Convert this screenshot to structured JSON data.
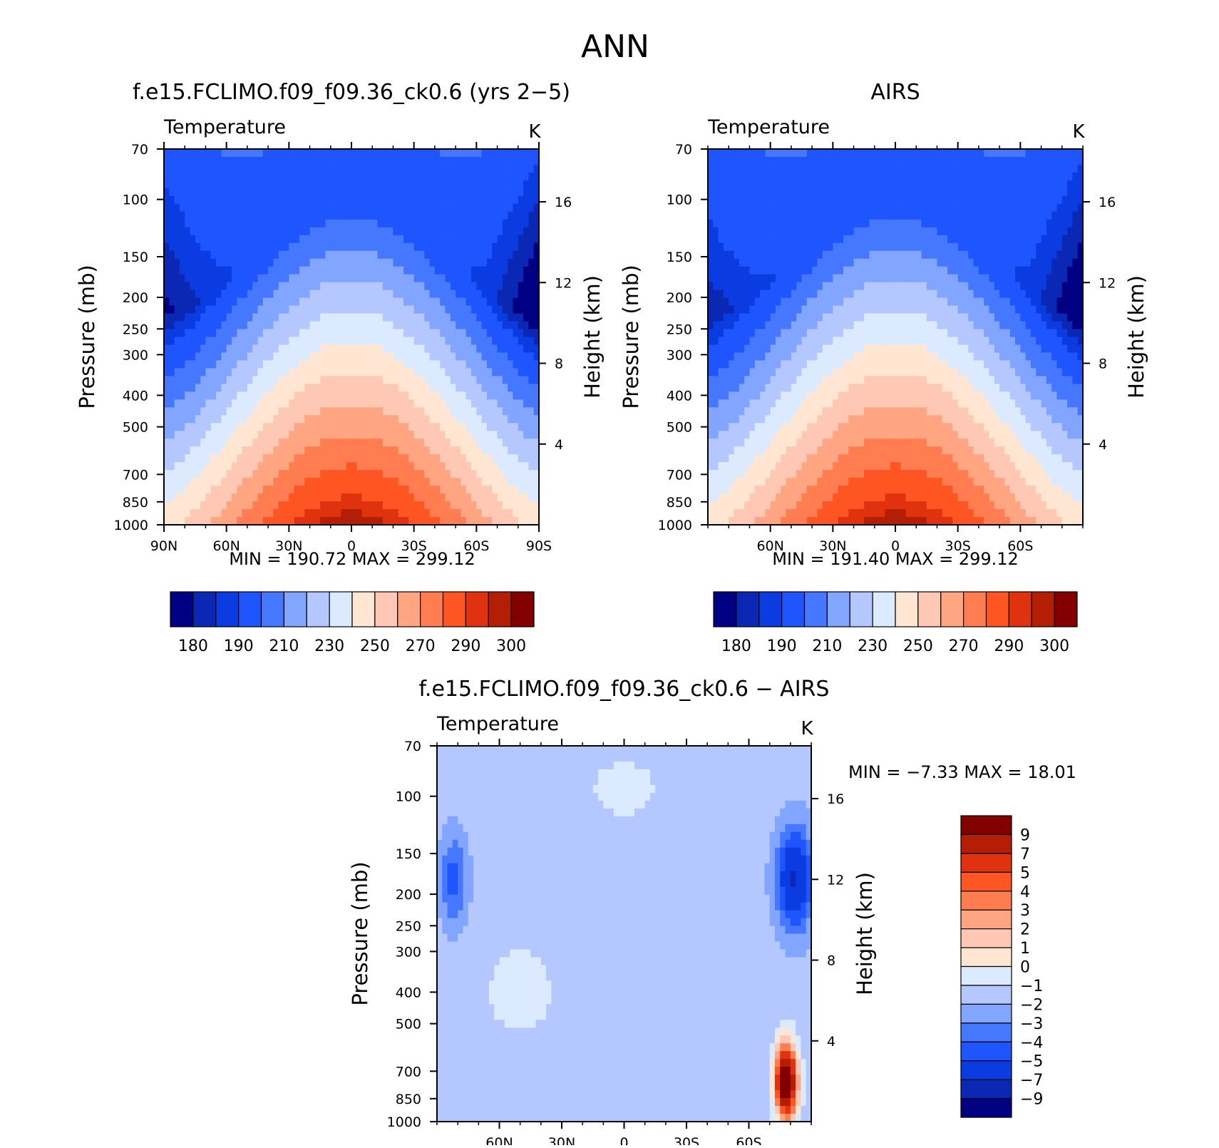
{
  "page_title": "ANN",
  "colors": {
    "temperature_scale": [
      "#000082",
      "#0a28b4",
      "#0a3ce1",
      "#1e55ff",
      "#4678ff",
      "#82a5ff",
      "#b4c8ff",
      "#dceaff",
      "#ffe6d2",
      "#ffc8b4",
      "#ffa582",
      "#ff7d50",
      "#ff5523",
      "#e1320f",
      "#b41e05",
      "#820000"
    ],
    "difference_scale": [
      "#000082",
      "#0a28b4",
      "#0a3ce1",
      "#1e55ff",
      "#4678ff",
      "#82a5ff",
      "#b4c8ff",
      "#dceaff",
      "#ffe6d2",
      "#ffc8b4",
      "#ffa582",
      "#ff7d50",
      "#ff5523",
      "#e1320f",
      "#b41e05",
      "#820000"
    ]
  },
  "chart_data": [
    {
      "id": "model",
      "type": "heatmap",
      "title": "f.e15.FCLIMO.f09_f09.36_ck0.6 (yrs 2−5)",
      "variable": "Temperature",
      "units": "K",
      "xlabel": "",
      "ylabel": "Pressure (mb)",
      "ylabel_right": "Height (km)",
      "x_ticks": [
        "90N",
        "60N",
        "30N",
        "0",
        "30S",
        "60S",
        "90S"
      ],
      "x_tick_values": [
        90,
        60,
        30,
        0,
        -30,
        -60,
        -90
      ],
      "y_ticks": [
        70,
        100,
        150,
        200,
        250,
        300,
        400,
        500,
        700,
        850,
        1000
      ],
      "y_scale": "log",
      "height_ticks": [
        4,
        8,
        12,
        16
      ],
      "contour_levels": [
        180,
        185,
        190,
        200,
        210,
        220,
        230,
        240,
        250,
        260,
        270,
        280,
        290,
        295,
        300
      ],
      "colorbar_labels": [
        "180",
        "190",
        "210",
        "230",
        "250",
        "270",
        "290",
        "300"
      ],
      "min_text": "MIN =  190.72   MAX =  299.12",
      "stats": {
        "min": 190.72,
        "max": 299.12
      }
    },
    {
      "id": "obs",
      "type": "heatmap",
      "title": "AIRS",
      "variable": "Temperature",
      "units": "K",
      "xlabel": "",
      "ylabel": "Pressure (mb)",
      "ylabel_right": "Height (km)",
      "x_ticks": [
        "60N",
        "30N",
        "0",
        "30S",
        "60S"
      ],
      "x_tick_values": [
        60,
        30,
        0,
        -30,
        -60
      ],
      "y_ticks": [
        70,
        100,
        150,
        200,
        250,
        300,
        400,
        500,
        700,
        850,
        1000
      ],
      "y_scale": "log",
      "height_ticks": [
        4,
        8,
        12,
        16
      ],
      "contour_levels": [
        180,
        185,
        190,
        200,
        210,
        220,
        230,
        240,
        250,
        260,
        270,
        280,
        290,
        295,
        300
      ],
      "colorbar_labels": [
        "180",
        "190",
        "210",
        "230",
        "250",
        "270",
        "290",
        "300"
      ],
      "min_text": "MIN =  191.40   MAX =  299.12",
      "stats": {
        "min": 191.4,
        "max": 299.12
      }
    },
    {
      "id": "diff",
      "type": "heatmap",
      "title": "f.e15.FCLIMO.f09_f09.36_ck0.6 − AIRS",
      "variable": "Temperature",
      "units": "K",
      "xlabel": "",
      "ylabel": "Pressure (mb)",
      "ylabel_right": "Height (km)",
      "x_ticks": [
        "60N",
        "30N",
        "0",
        "30S",
        "60S"
      ],
      "x_tick_values": [
        60,
        30,
        0,
        -30,
        -60
      ],
      "y_ticks": [
        70,
        100,
        150,
        200,
        250,
        300,
        400,
        500,
        700,
        850,
        1000
      ],
      "y_scale": "log",
      "height_ticks": [
        4,
        8,
        12,
        16
      ],
      "contour_levels": [
        -9,
        -7,
        -5,
        -4,
        -3,
        -2,
        -1,
        0,
        1,
        2,
        3,
        4,
        5,
        7,
        9
      ],
      "colorbar_labels": [
        "9",
        "7",
        "5",
        "4",
        "3",
        "2",
        "1",
        "0",
        "−1",
        "−2",
        "−3",
        "−4",
        "−5",
        "−7",
        "−9"
      ],
      "min_text": "MIN =    −7.33    MAX =    18.01",
      "stats": {
        "min": -7.33,
        "max": 18.01
      }
    }
  ]
}
